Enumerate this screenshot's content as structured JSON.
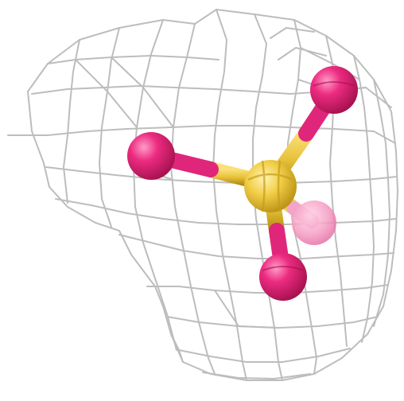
{
  "scene": {
    "subject": "sulfate-ion-in-electron-density-mesh",
    "colors": {
      "background": "#ffffff",
      "mesh": "#bdbdbd",
      "sulfur": "#e8c23a",
      "oxygen": "#e0267a",
      "oxygen_highlight": "#f6a3c7"
    },
    "atoms": [
      {
        "element": "S",
        "role": "central"
      },
      {
        "element": "O",
        "role": "left"
      },
      {
        "element": "O",
        "role": "upper-right"
      },
      {
        "element": "O",
        "role": "lower"
      },
      {
        "element": "O",
        "role": "rear-translucent"
      }
    ]
  }
}
